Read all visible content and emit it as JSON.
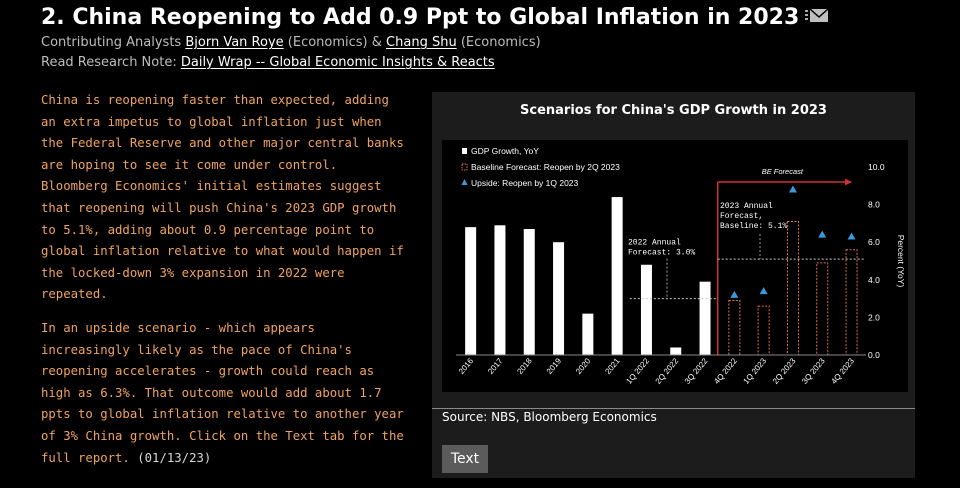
{
  "header": {
    "title": "2. China Reopening to Add 0.9 Ppt to Global Inflation in 2023",
    "contrib_prefix": "Contributing Analysts",
    "analyst1": "Bjorn Van Roye",
    "analyst1_dept": "(Economics) &",
    "analyst2": "Chang Shu",
    "analyst2_dept": "(Economics)",
    "research_prefix": "Read Research Note:",
    "research_link": "Daily Wrap -- Global Economic Insights & Reacts"
  },
  "story": {
    "paragraph1": "China is reopening faster than expected, adding an extra impetus to global inflation just when the Federal Reserve and other major central banks are hoping to see it come under control. Bloomberg Economics' initial estimates suggest that reopening will push China's 2023 GDP growth to 5.1%, adding about 0.9 percentage point to global inflation relative to what would happen if the locked-down 3% expansion in 2022 were repeated.",
    "paragraph2": "In an upside scenario - which appears increasingly likely as the pace of China's reopening accelerates - growth could reach as high as 6.3%. That outcome would add about 1.7 ppts to global inflation relative to another year of 3% China growth. Click on the Text tab for the full report.",
    "date": "(01/13/23)"
  },
  "panel": {
    "title": "Scenarios for China's GDP Growth in 2023",
    "source": "Source: NBS, Bloomberg Economics",
    "text_button": "Text"
  },
  "chart_data": {
    "type": "bar",
    "title": "Scenarios for China's GDP Growth in 2023",
    "ylabel": "Percent (YoY)",
    "ylim": [
      0,
      10
    ],
    "yticks": [
      "0.0",
      "2.0",
      "4.0",
      "6.0",
      "8.0",
      "10.0"
    ],
    "categories": [
      "2016",
      "2017",
      "2018",
      "2019",
      "2020",
      "2021",
      "1Q 2022",
      "2Q 2022",
      "3Q 2022",
      "4Q 2022",
      "1Q 2023",
      "2Q 2023",
      "3Q 2023",
      "4Q 2023"
    ],
    "series": [
      {
        "name": "GDP Growth, YoY",
        "color": "#ffffff",
        "values": [
          6.8,
          6.9,
          6.7,
          6.0,
          2.2,
          8.4,
          4.8,
          0.4,
          3.9,
          null,
          null,
          null,
          null,
          null
        ]
      },
      {
        "name": "Baseline Forecast: Reopen by 2Q 2023",
        "color": "#e07050",
        "values": [
          null,
          null,
          null,
          null,
          null,
          null,
          null,
          null,
          null,
          2.9,
          2.6,
          7.1,
          4.9,
          5.6
        ]
      },
      {
        "name": "Upside: Reopen by 1Q 2023",
        "color": "#3a9ad9",
        "values": [
          null,
          null,
          null,
          null,
          null,
          null,
          null,
          null,
          null,
          3.2,
          3.4,
          8.8,
          6.4,
          6.3
        ]
      }
    ],
    "annotations": [
      {
        "text": [
          "2022 Annual",
          "Forecast: 3.0%"
        ],
        "value": 3.0
      },
      {
        "text": [
          "2023 Annual",
          "Forecast,",
          "Baseline: 5.1%"
        ],
        "value": 5.1
      }
    ],
    "forecast_label": "BE Forecast",
    "legend_position": "top-left",
    "grid": false
  }
}
